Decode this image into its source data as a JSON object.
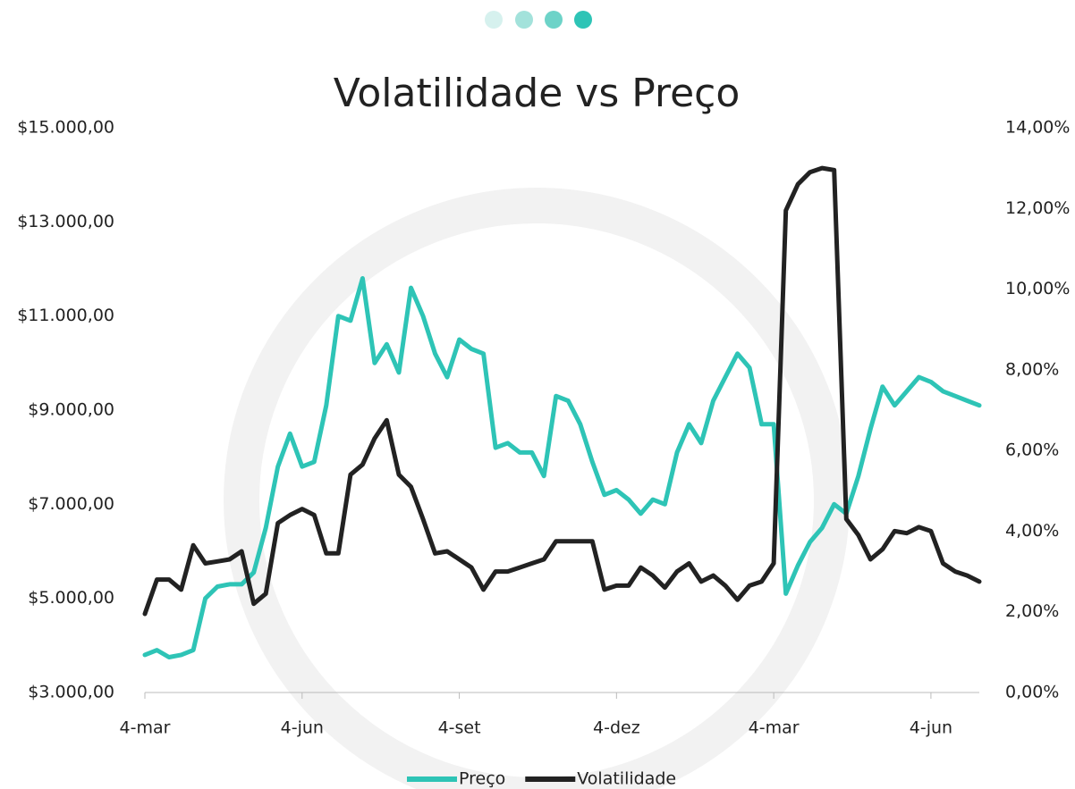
{
  "chart_data": {
    "type": "line",
    "title": "Volatilidade vs Preço",
    "categories": [
      "4-mar",
      null,
      null,
      null,
      null,
      null,
      null,
      null,
      null,
      null,
      null,
      null,
      null,
      "4-jun",
      null,
      null,
      null,
      null,
      null,
      null,
      null,
      null,
      null,
      null,
      null,
      null,
      "4-set",
      null,
      null,
      null,
      null,
      null,
      null,
      null,
      null,
      null,
      null,
      null,
      null,
      "4-dez",
      null,
      null,
      null,
      null,
      null,
      null,
      null,
      null,
      null,
      null,
      null,
      null,
      "4-mar",
      null,
      null,
      null,
      null,
      null,
      null,
      null,
      null,
      null,
      null,
      null,
      null,
      "4-jun",
      null,
      null,
      null,
      null
    ],
    "series": [
      {
        "name": "Preço",
        "color": "#2ec4b6",
        "values": [
          3800,
          3900,
          3750,
          3800,
          3900,
          5000,
          5250,
          5300,
          5300,
          5550,
          6500,
          7800,
          8500,
          7800,
          7900,
          9100,
          11000,
          10900,
          11800,
          10000,
          10400,
          9800,
          11600,
          11000,
          10200,
          9700,
          10500,
          10300,
          10200,
          8200,
          8300,
          8100,
          8100,
          7600,
          9300,
          9200,
          8700,
          7900,
          7200,
          7300,
          7100,
          6800,
          7100,
          7000,
          8100,
          8700,
          8300,
          9200,
          9700,
          10200,
          9900,
          8700,
          8700,
          5100,
          5700,
          6200,
          6500,
          7000,
          6800,
          7600,
          8600,
          9500,
          9100,
          9400,
          9700,
          9600,
          9400,
          9300,
          9200,
          9100
        ]
      },
      {
        "name": "Volatilidade",
        "color": "#222222",
        "axis": "y2",
        "values": [
          1.95,
          2.8,
          2.8,
          2.55,
          3.65,
          3.2,
          3.25,
          3.3,
          3.5,
          2.2,
          2.45,
          4.2,
          4.4,
          4.55,
          4.4,
          3.45,
          3.45,
          5.4,
          5.65,
          6.3,
          6.75,
          5.4,
          5.1,
          4.3,
          3.45,
          3.5,
          3.3,
          3.1,
          2.55,
          3.0,
          3.0,
          3.1,
          3.2,
          3.3,
          3.75,
          3.75,
          3.75,
          3.75,
          2.55,
          2.65,
          2.65,
          3.1,
          2.9,
          2.6,
          3.0,
          3.2,
          2.75,
          2.9,
          2.65,
          2.3,
          2.65,
          2.75,
          3.2,
          11.95,
          12.6,
          12.9,
          13.0,
          12.95,
          4.3,
          3.9,
          3.3,
          3.55,
          4.0,
          3.95,
          4.1,
          4.0,
          3.2,
          3.0,
          2.9,
          2.75
        ]
      }
    ],
    "ylim": [
      3000,
      15000
    ],
    "yticks": [
      {
        "value": 3000,
        "label": "$3.000,00"
      },
      {
        "value": 5000,
        "label": "$5.000,00"
      },
      {
        "value": 7000,
        "label": "$7.000,00"
      },
      {
        "value": 9000,
        "label": "$9.000,00"
      },
      {
        "value": 11000,
        "label": "$11.000,00"
      },
      {
        "value": 13000,
        "label": "$13.000,00"
      },
      {
        "value": 15000,
        "label": "$15.000,00"
      }
    ],
    "y2lim": [
      0,
      14
    ],
    "y2ticks": [
      {
        "value": 0,
        "label": "0,00%"
      },
      {
        "value": 2,
        "label": "2,00%"
      },
      {
        "value": 4,
        "label": "4,00%"
      },
      {
        "value": 6,
        "label": "6,00%"
      },
      {
        "value": 8,
        "label": "8,00%"
      },
      {
        "value": 10,
        "label": "10,00%"
      },
      {
        "value": 12,
        "label": "12,00%"
      },
      {
        "value": 14,
        "label": "14,00%"
      }
    ],
    "grid": false,
    "legend": "bottom"
  }
}
